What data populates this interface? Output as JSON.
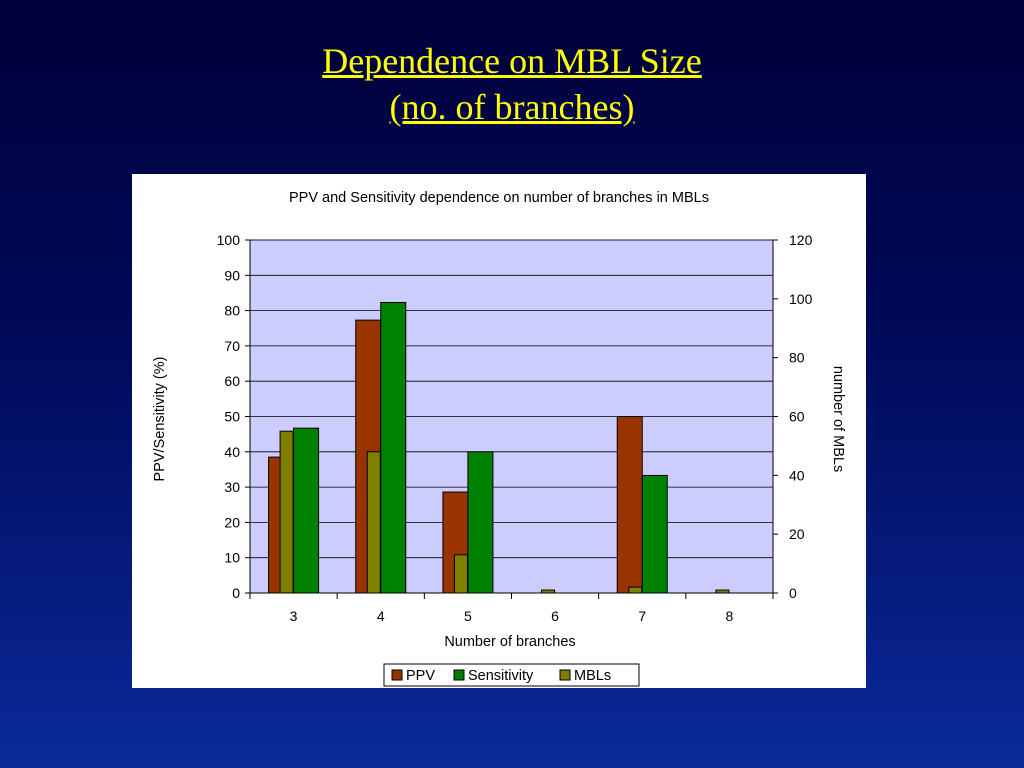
{
  "slide": {
    "title_line1": "Dependence on MBL Size",
    "title_line2": "(no. of branches)"
  },
  "chart_data": {
    "type": "bar",
    "title": "PPV and Sensitivity dependence on number of branches in MBLs",
    "xlabel": "Number of branches",
    "ylabel": "PPV/Sensitivity (%)",
    "y2label": "number of MBLs",
    "categories": [
      "3",
      "4",
      "5",
      "6",
      "7",
      "8"
    ],
    "ylim": [
      0,
      100
    ],
    "y2lim": [
      0,
      120
    ],
    "yticks": [
      0,
      10,
      20,
      30,
      40,
      50,
      60,
      70,
      80,
      90,
      100
    ],
    "y2ticks": [
      0,
      20,
      40,
      60,
      80,
      100,
      120
    ],
    "grid": true,
    "legend_position": "bottom",
    "series": [
      {
        "name": "PPV",
        "axis": "left",
        "color": "#993300",
        "values": [
          38.5,
          77.3,
          28.6,
          0,
          50,
          0
        ]
      },
      {
        "name": "Sensitivity",
        "axis": "left",
        "color": "#008000",
        "values": [
          46.7,
          82.3,
          40,
          0,
          33.3,
          0
        ]
      },
      {
        "name": "MBLs",
        "axis": "right",
        "color": "#808000",
        "values": [
          55,
          48,
          13,
          1,
          2,
          1
        ]
      }
    ],
    "plot_background": "#ccccff"
  }
}
